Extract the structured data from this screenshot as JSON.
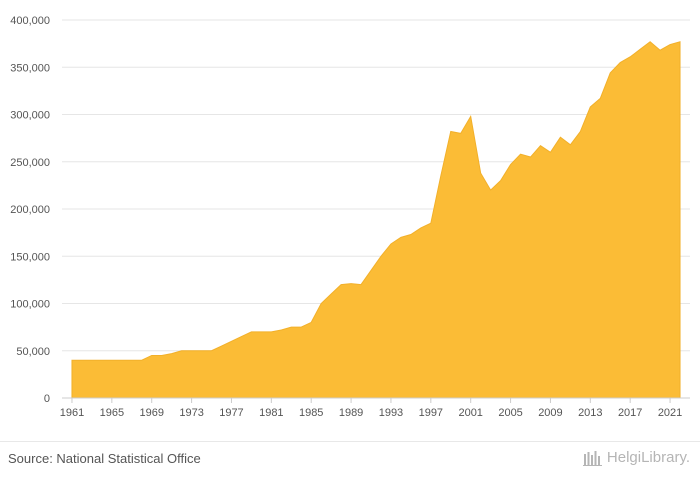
{
  "chart_data": {
    "type": "area",
    "title": "",
    "xlabel": "",
    "ylabel": "",
    "ylim": [
      0,
      400000
    ],
    "grid": true,
    "yticks": [
      0,
      50000,
      100000,
      150000,
      200000,
      250000,
      300000,
      350000,
      400000
    ],
    "ytick_labels": [
      "0",
      "50,000",
      "100,000",
      "150,000",
      "200,000",
      "250,000",
      "300,000",
      "350,000",
      "400,000"
    ],
    "xticks": [
      1961,
      1965,
      1969,
      1973,
      1977,
      1981,
      1985,
      1989,
      1993,
      1997,
      2001,
      2005,
      2009,
      2013,
      2017,
      2021
    ],
    "xtick_labels": [
      "1961",
      "1965",
      "1969",
      "1973",
      "1977",
      "1981",
      "1985",
      "1989",
      "1993",
      "1997",
      "2001",
      "2005",
      "2009",
      "2013",
      "2017",
      "2021"
    ],
    "color": "#FBBC36",
    "x": [
      1961,
      1962,
      1963,
      1964,
      1965,
      1966,
      1967,
      1968,
      1969,
      1970,
      1971,
      1972,
      1973,
      1974,
      1975,
      1976,
      1977,
      1978,
      1979,
      1980,
      1981,
      1982,
      1983,
      1984,
      1985,
      1986,
      1987,
      1988,
      1989,
      1990,
      1991,
      1992,
      1993,
      1994,
      1995,
      1996,
      1997,
      1998,
      1999,
      2000,
      2001,
      2002,
      2003,
      2004,
      2005,
      2006,
      2007,
      2008,
      2009,
      2010,
      2011,
      2012,
      2013,
      2014,
      2015,
      2016,
      2017,
      2018,
      2019,
      2020,
      2021,
      2022
    ],
    "values": [
      40000,
      40000,
      40000,
      40000,
      40000,
      40000,
      40000,
      40000,
      45000,
      45000,
      47000,
      50000,
      50000,
      50000,
      50000,
      55000,
      60000,
      65000,
      70000,
      70000,
      70000,
      72000,
      75000,
      75000,
      80000,
      100000,
      110000,
      120000,
      121000,
      120000,
      135000,
      150000,
      163000,
      170000,
      173000,
      180000,
      185000,
      235000,
      282000,
      280000,
      298000,
      238000,
      220000,
      230000,
      247000,
      258000,
      255000,
      267000,
      260000,
      276000,
      268000,
      282000,
      308000,
      317000,
      344000,
      355000,
      361000,
      369000,
      377000,
      368000,
      374000,
      377000
    ]
  },
  "footer": {
    "source": "Source: National Statistical Office",
    "brand": "HelgiLibrary."
  }
}
